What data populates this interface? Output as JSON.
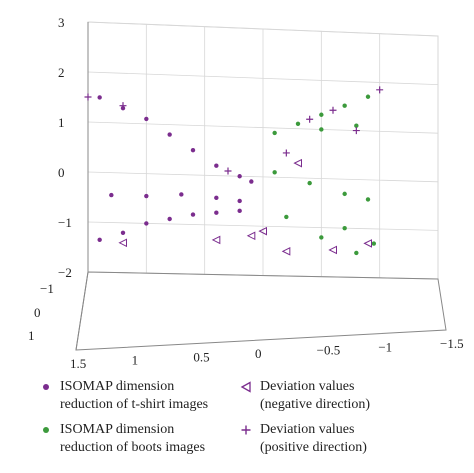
{
  "chart_data": {
    "type": "scatter",
    "title": "",
    "xlabel": "",
    "ylabel": "",
    "zlabel": "",
    "xlim": [
      -1.5,
      1.5
    ],
    "ylim": [
      -1,
      1
    ],
    "zlim": [
      -2,
      3
    ],
    "x_ticks": [
      "1.5",
      "1",
      "0.5",
      "0",
      "−0.5",
      "−1",
      "−1.5"
    ],
    "y_ticks": [
      "−1",
      "0",
      "1"
    ],
    "z_ticks": [
      "3",
      "2",
      "1",
      "0",
      "−1",
      "−2"
    ],
    "grid": true,
    "colors": {
      "tshirt": "#7b2d8e",
      "boots": "#3c9a3c"
    },
    "series": [
      {
        "name": "ISOMAP dimension reduction of t-shirt images",
        "marker": "dot",
        "color": "#7b2d8e",
        "points": [
          [
            1.4,
            0,
            1.5
          ],
          [
            1.2,
            0,
            1.3
          ],
          [
            1.0,
            0,
            1.1
          ],
          [
            0.8,
            0,
            0.8
          ],
          [
            0.6,
            0,
            0.5
          ],
          [
            0.4,
            0,
            0.2
          ],
          [
            0.2,
            0,
            0.0
          ],
          [
            0.1,
            0,
            -0.1
          ],
          [
            1.3,
            0,
            -0.45
          ],
          [
            1.0,
            0,
            -0.45
          ],
          [
            0.7,
            0,
            -0.4
          ],
          [
            0.4,
            0,
            -0.45
          ],
          [
            0.2,
            0,
            -0.5
          ],
          [
            1.4,
            0,
            -1.35
          ],
          [
            1.2,
            0,
            -1.2
          ],
          [
            1.0,
            0,
            -1.0
          ],
          [
            0.8,
            0,
            -0.9
          ],
          [
            0.6,
            0,
            -0.8
          ],
          [
            0.4,
            0,
            -0.75
          ],
          [
            0.2,
            0,
            -0.7
          ]
        ]
      },
      {
        "name": "ISOMAP dimension reduction of boots images",
        "marker": "dot",
        "color": "#3c9a3c",
        "points": [
          [
            -0.1,
            0,
            0.9
          ],
          [
            -0.3,
            0,
            1.1
          ],
          [
            -0.5,
            0,
            1.3
          ],
          [
            -0.7,
            0,
            1.5
          ],
          [
            -0.9,
            0,
            1.7
          ],
          [
            -0.5,
            0,
            1.0
          ],
          [
            -0.8,
            0,
            1.1
          ],
          [
            -0.1,
            0,
            0.1
          ],
          [
            -0.4,
            0,
            -0.1
          ],
          [
            -0.7,
            0,
            -0.3
          ],
          [
            -0.9,
            0,
            -0.4
          ],
          [
            -0.2,
            0,
            -0.8
          ],
          [
            -0.5,
            0,
            -1.2
          ],
          [
            -0.8,
            0,
            -1.5
          ],
          [
            -0.7,
            0,
            -1.0
          ],
          [
            -0.95,
            0,
            -1.3
          ]
        ]
      },
      {
        "name": "Deviation values (negative direction)",
        "marker": "triangle-left",
        "color": "#7b2d8e",
        "points": [
          [
            1.2,
            0,
            -1.4
          ],
          [
            0.4,
            0,
            -1.3
          ],
          [
            0.1,
            0,
            -1.2
          ],
          [
            -0.2,
            0,
            -1.5
          ],
          [
            -0.6,
            0,
            -1.45
          ],
          [
            -0.9,
            0,
            -1.3
          ],
          [
            -0.3,
            0,
            0.3
          ],
          [
            0.0,
            0,
            -1.1
          ]
        ]
      },
      {
        "name": "Deviation values (positive direction)",
        "marker": "plus",
        "color": "#7b2d8e",
        "points": [
          [
            1.5,
            0,
            1.5
          ],
          [
            1.2,
            0,
            1.35
          ],
          [
            0.3,
            0,
            0.1
          ],
          [
            -0.2,
            0,
            0.5
          ],
          [
            -0.6,
            0,
            1.4
          ],
          [
            -1.0,
            0,
            1.85
          ],
          [
            -0.4,
            0,
            1.2
          ],
          [
            -0.8,
            0,
            1.0
          ]
        ]
      }
    ],
    "legend": [
      {
        "line1": "ISOMAP dimension",
        "line2": "reduction of t-shirt images",
        "marker": "dot",
        "color": "#7b2d8e"
      },
      {
        "line1": "ISOMAP dimension",
        "line2": "reduction of boots images",
        "marker": "dot",
        "color": "#3c9a3c"
      },
      {
        "line1": "Deviation values",
        "line2": "(negative direction)",
        "marker": "triangle-left",
        "color": "#7b2d8e"
      },
      {
        "line1": "Deviation values",
        "line2": "(positive direction)",
        "marker": "plus",
        "color": "#7b2d8e"
      }
    ],
    "legend_placement": "bottom"
  }
}
